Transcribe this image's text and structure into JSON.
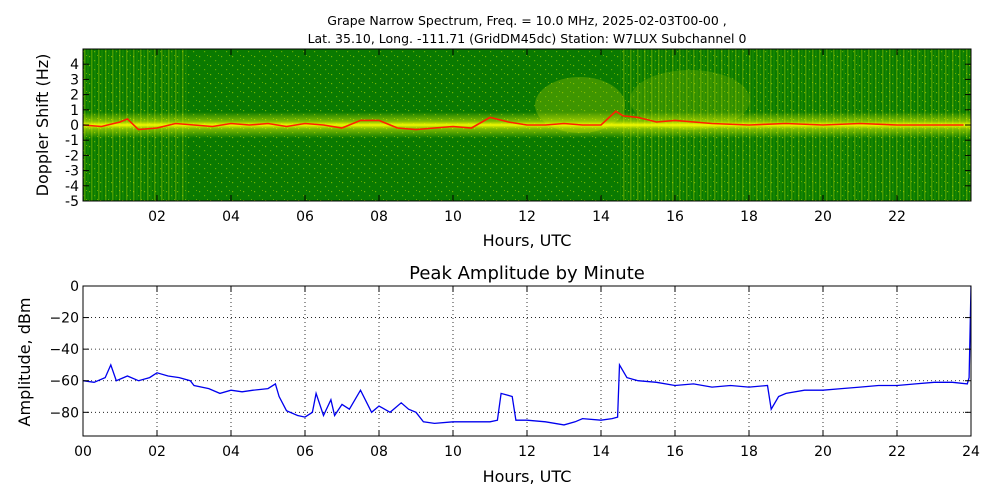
{
  "chart_data": [
    {
      "type": "heatmap",
      "title_line1": "Grape Narrow Spectrum, Freq. = 10.0 MHz, 2025-02-03T00-00 ,",
      "title_line2": "Lat.  35.10, Long. -111.71 (GridDM45dc) Station: W7LUX Subchannel 0",
      "xlabel": "Hours, UTC",
      "ylabel": "Doppler Shift (Hz)",
      "xlim": [
        0,
        24
      ],
      "ylim": [
        -5,
        5
      ],
      "x_ticks": [
        "02",
        "04",
        "06",
        "08",
        "10",
        "12",
        "14",
        "16",
        "18",
        "20",
        "22"
      ],
      "x_tick_values": [
        2,
        4,
        6,
        8,
        10,
        12,
        14,
        16,
        18,
        20,
        22
      ],
      "y_ticks": [
        "4",
        "3",
        "2",
        "1",
        "0",
        "-1",
        "-2",
        "-3",
        "-4",
        "-5"
      ],
      "y_tick_values": [
        4,
        3,
        2,
        1,
        0,
        -1,
        -2,
        -3,
        -4,
        -5
      ],
      "colors": {
        "background": "#0a7a00",
        "mid": "#b8d800",
        "high": "#ffff00",
        "peak": "#ff2000"
      },
      "trace": {
        "x": [
          0,
          0.5,
          1,
          1.2,
          1.5,
          2,
          2.5,
          3,
          3.5,
          4,
          4.5,
          5,
          5.5,
          6,
          6.5,
          7,
          7.5,
          8,
          8.5,
          9,
          9.5,
          10,
          10.5,
          11,
          11.5,
          12,
          12.5,
          13,
          13.5,
          14,
          14.4,
          14.6,
          15,
          15.5,
          16,
          17,
          18,
          19,
          20,
          21,
          22,
          23,
          23.8
        ],
        "y": [
          0,
          -0.1,
          0.2,
          0.4,
          -0.3,
          -0.2,
          0.1,
          0,
          -0.1,
          0.1,
          0,
          0.1,
          -0.1,
          0.1,
          0,
          -0.2,
          0.3,
          0.3,
          -0.2,
          -0.3,
          -0.2,
          -0.1,
          -0.2,
          0.5,
          0.2,
          0,
          0,
          0.1,
          0,
          0,
          0.9,
          0.6,
          0.5,
          0.2,
          0.3,
          0.1,
          0,
          0.1,
          0,
          0.1,
          0,
          0,
          0
        ]
      }
    },
    {
      "type": "line",
      "title": "Peak Amplitude by Minute",
      "xlabel": "Hours, UTC",
      "ylabel": "Amplitude, dBm",
      "xlim": [
        0,
        24
      ],
      "ylim": [
        -95,
        0
      ],
      "x_ticks": [
        "00",
        "02",
        "04",
        "06",
        "08",
        "10",
        "12",
        "14",
        "16",
        "18",
        "20",
        "22",
        "24"
      ],
      "x_tick_values": [
        0,
        2,
        4,
        6,
        8,
        10,
        12,
        14,
        16,
        18,
        20,
        22,
        24
      ],
      "y_ticks": [
        "0",
        "−20",
        "−40",
        "−60",
        "−80"
      ],
      "y_tick_values": [
        0,
        -20,
        -40,
        -60,
        -80
      ],
      "grid": true,
      "line_color": "#0000ee",
      "series": [
        {
          "x": [
            0,
            0.3,
            0.6,
            0.75,
            0.9,
            1.2,
            1.5,
            1.8,
            2.0,
            2.3,
            2.6,
            2.9,
            3.0,
            3.4,
            3.7,
            4.0,
            4.3,
            4.6,
            5.0,
            5.2,
            5.3,
            5.5,
            5.8,
            6.0,
            6.2,
            6.3,
            6.5,
            6.7,
            6.8,
            7.0,
            7.2,
            7.5,
            7.8,
            8.0,
            8.3,
            8.6,
            8.8,
            9.0,
            9.2,
            9.5,
            10.0,
            10.5,
            11.0,
            11.2,
            11.3,
            11.6,
            11.7,
            12.0,
            12.5,
            13.0,
            13.3,
            13.5,
            14.0,
            14.3,
            14.45,
            14.5,
            14.7,
            15.0,
            15.5,
            16.0,
            16.5,
            17.0,
            17.5,
            18.0,
            18.5,
            18.6,
            18.8,
            19.0,
            19.5,
            20.0,
            20.5,
            21.0,
            21.5,
            22.0,
            22.5,
            23.0,
            23.5,
            23.9,
            23.95,
            24.0
          ],
          "y": [
            -60,
            -61,
            -58,
            -50,
            -60,
            -57,
            -60,
            -58,
            -55,
            -57,
            -58,
            -60,
            -63,
            -65,
            -68,
            -66,
            -67,
            -66,
            -65,
            -62,
            -70,
            -79,
            -82,
            -83,
            -80,
            -68,
            -82,
            -72,
            -82,
            -75,
            -78,
            -66,
            -80,
            -76,
            -80,
            -74,
            -78,
            -80,
            -86,
            -87,
            -86,
            -86,
            -86,
            -85,
            -68,
            -70,
            -85,
            -85,
            -86,
            -88,
            -86,
            -84,
            -85,
            -84,
            -83,
            -50,
            -58,
            -60,
            -61,
            -63,
            -62,
            -64,
            -63,
            -64,
            -63,
            -78,
            -70,
            -68,
            -66,
            -66,
            -65,
            -64,
            -63,
            -63,
            -62,
            -61,
            -61,
            -62,
            -58,
            0
          ]
        }
      ]
    }
  ]
}
